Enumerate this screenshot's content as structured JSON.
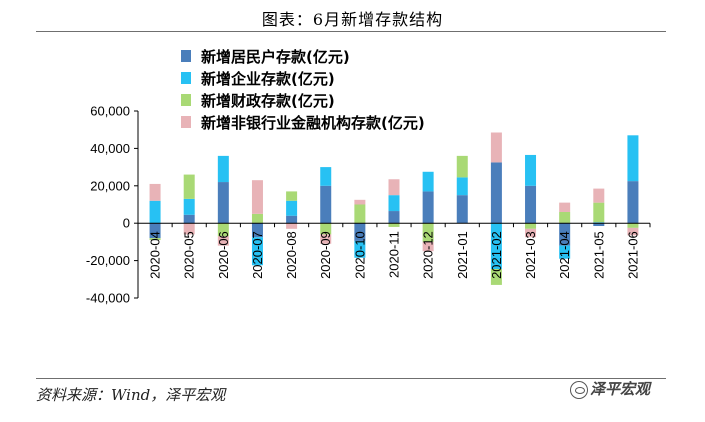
{
  "title": "图表：6月新增存款结构",
  "source": "资料来源：Wind，泽平宏观",
  "watermark": "泽平宏观",
  "chart_data": {
    "type": "bar",
    "stacked": true,
    "categories": [
      "2020-04",
      "2020-05",
      "2020-06",
      "2020-07",
      "2020-08",
      "2020-09",
      "2020-10",
      "2020-11",
      "2020-12",
      "2021-01",
      "2021-02",
      "2021-03",
      "2021-04",
      "2021-05",
      "2021-06"
    ],
    "ylim": [
      -40000,
      60000
    ],
    "yticks": [
      -40000,
      -20000,
      0,
      20000,
      40000,
      60000
    ],
    "ytick_labels": [
      "-40,000",
      "-20,000",
      "0",
      "20,000",
      "40,000",
      "60,000"
    ],
    "legend_position": "top-left",
    "grid": false,
    "series": [
      {
        "name": "新增居民户存款(亿元)",
        "color": "#4a7ebb",
        "values": [
          -8000,
          4500,
          22000,
          -7500,
          4000,
          20000,
          -9500,
          6500,
          17000,
          15000,
          32500,
          20000,
          -12000,
          -1500,
          22500
        ]
      },
      {
        "name": "新增企业存款(亿元)",
        "color": "#27c1f3",
        "values": [
          12000,
          8500,
          14000,
          -15000,
          8000,
          10000,
          -9000,
          8500,
          10500,
          9500,
          -24500,
          16500,
          -7000,
          500,
          24500
        ]
      },
      {
        "name": "新增财政存款(亿元)",
        "color": "#a9d975",
        "values": [
          -1000,
          13000,
          -7000,
          5000,
          5000,
          -6000,
          10000,
          -2000,
          -10000,
          11500,
          -8500,
          -3000,
          6000,
          10500,
          -2500
        ]
      },
      {
        "name": "新增非银行业金融机构存款(亿元)",
        "color": "#e8b3b7",
        "values": [
          9000,
          -6000,
          -5000,
          18000,
          -3000,
          -5000,
          2500,
          8500,
          -5000,
          0,
          16000,
          -4500,
          5000,
          7500,
          -4000
        ]
      }
    ]
  }
}
